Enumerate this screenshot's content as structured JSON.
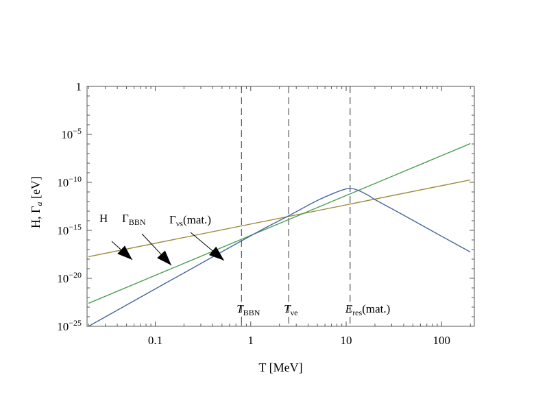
{
  "chart_data": {
    "type": "line",
    "xscale": "log",
    "yscale": "log",
    "xlabel": "T [MeV]",
    "ylabel": "H, Γ_a [eV]",
    "ylabel_parts": {
      "main": "H, Γ",
      "sub": "a",
      "unit": " [eV]"
    },
    "xlim": [
      0.0193,
      220
    ],
    "ylim": [
      1e-25,
      1
    ],
    "x_ticks": [
      {
        "value": 0.1,
        "label": "0.1"
      },
      {
        "value": 1,
        "label": "1"
      },
      {
        "value": 10,
        "label": "10"
      },
      {
        "value": 100,
        "label": "100"
      }
    ],
    "y_ticks": [
      {
        "value": 1,
        "base": "1",
        "exp": ""
      },
      {
        "value": 1e-05,
        "base": "10",
        "exp": "−5"
      },
      {
        "value": 1e-10,
        "base": "10",
        "exp": "−10"
      },
      {
        "value": 1e-15,
        "base": "10",
        "exp": "−15"
      },
      {
        "value": 1e-20,
        "base": "10",
        "exp": "−20"
      },
      {
        "value": 1e-25,
        "base": "10",
        "exp": "−25"
      }
    ],
    "series": [
      {
        "name": "H",
        "color": "#9c8b3e",
        "x": [
          0.02,
          200
        ],
        "y": [
          1.8e-18,
          1.8e-10
        ]
      },
      {
        "name": "Γ_BBN",
        "color": "#4aa050",
        "x": [
          0.02,
          200
        ],
        "y": [
          2.5e-23,
          1.1e-06
        ]
      },
      {
        "name": "Γ_νs(mat.)",
        "color": "#4565a0",
        "x": [
          0.02,
          0.8,
          2.5,
          5,
          8,
          10,
          11,
          12,
          14,
          17,
          20,
          30,
          50,
          100,
          200
        ],
        "y": [
          1e-25,
          8e-17,
          3.3e-14,
          1.3e-12,
          1e-11,
          2.1e-11,
          2.3e-11,
          2.1e-11,
          1.2e-11,
          4.5e-12,
          1.6e-12,
          1.8e-13,
          1.1e-14,
          2.4e-16,
          5.5e-18
        ]
      }
    ],
    "vertical_lines": [
      {
        "name": "T_BBN",
        "x": 0.8,
        "label": {
          "main": "T",
          "sub": "BBN",
          "tail": ""
        }
      },
      {
        "name": "T_νe",
        "x": 2.5,
        "label": {
          "main": "T",
          "sub": "νe",
          "tail": ""
        }
      },
      {
        "name": "E_res(mat.)",
        "x": 11,
        "label": {
          "main": "E",
          "sub": "res",
          "tail": "(mat.)"
        }
      }
    ],
    "annotations": [
      {
        "id": "H",
        "label": {
          "main": "H",
          "sub": "",
          "tail": ""
        }
      },
      {
        "id": "BBN",
        "label": {
          "main": "Γ",
          "sub": "BBN",
          "tail": ""
        }
      },
      {
        "id": "vs",
        "label": {
          "main": "Γ",
          "sub": "νs",
          "tail": "(mat.)"
        }
      }
    ]
  }
}
